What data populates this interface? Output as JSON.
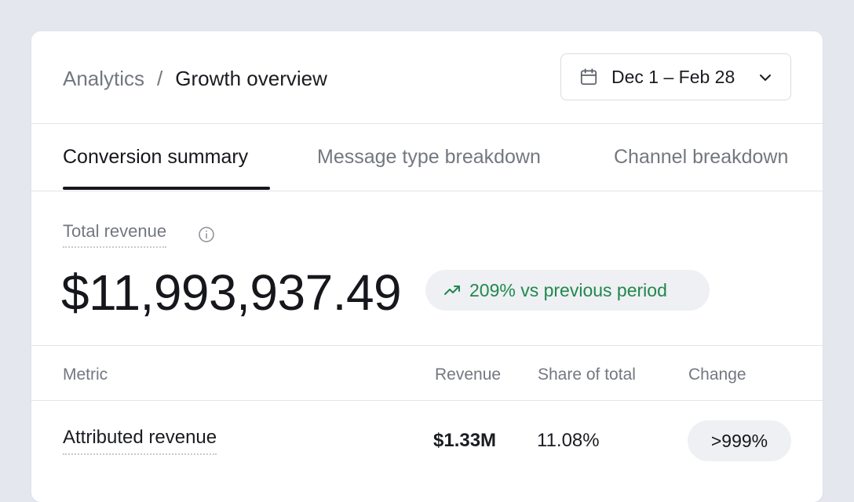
{
  "breadcrumb": {
    "parent": "Analytics",
    "separator": "/",
    "current": "Growth overview"
  },
  "date_range": {
    "label": "Dec 1 – Feb 28",
    "icon": "calendar-icon",
    "dropdown_icon": "chevron-down-icon"
  },
  "tabs": [
    {
      "label": "Conversion summary",
      "active": true
    },
    {
      "label": "Message type breakdown",
      "active": false
    },
    {
      "label": "Channel breakdown",
      "active": false
    }
  ],
  "summary": {
    "label": "Total revenue",
    "info_icon": "info-icon",
    "value": "$11,993,937.49",
    "trend_icon": "trending-up-icon",
    "trend_text": "209% vs previous period",
    "trend_color": "#21874e"
  },
  "table": {
    "columns": [
      "Metric",
      "Revenue",
      "Share of total",
      "Change"
    ],
    "rows": [
      {
        "metric": "Attributed revenue",
        "revenue": "$1.33M",
        "share": "11.08%",
        "change": ">999%"
      }
    ]
  },
  "colors": {
    "background": "#e4e7ee",
    "card": "#ffffff",
    "muted_text": "#737780",
    "primary_text": "#16171c",
    "pill_background": "#eef0f3"
  }
}
